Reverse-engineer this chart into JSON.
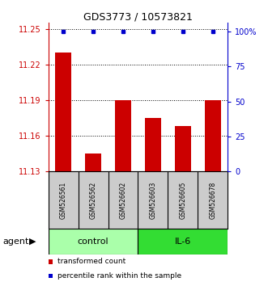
{
  "title": "GDS3773 / 10573821",
  "samples": [
    "GSM526561",
    "GSM526562",
    "GSM526602",
    "GSM526603",
    "GSM526605",
    "GSM526678"
  ],
  "bar_values": [
    11.23,
    11.145,
    11.19,
    11.175,
    11.168,
    11.19
  ],
  "percentile_values": [
    100,
    100,
    100,
    100,
    100,
    100
  ],
  "ylim_left": [
    11.13,
    11.255
  ],
  "yticks_left": [
    11.13,
    11.16,
    11.19,
    11.22,
    11.25
  ],
  "ylim_right": [
    0,
    106
  ],
  "yticks_right": [
    0,
    25,
    50,
    75,
    100
  ],
  "yticklabels_right": [
    "0",
    "25",
    "50",
    "75",
    "100%"
  ],
  "bar_color": "#cc0000",
  "dot_color": "#0000cc",
  "bar_bottom": 11.13,
  "group_starts": [
    0,
    3
  ],
  "group_ends": [
    3,
    6
  ],
  "groups": [
    {
      "label": "control",
      "color": "#aaffaa"
    },
    {
      "label": "IL-6",
      "color": "#33dd33"
    }
  ],
  "agent_label": "agent",
  "legend_items": [
    {
      "label": "transformed count",
      "color": "#cc0000"
    },
    {
      "label": "percentile rank within the sample",
      "color": "#0000cc"
    }
  ],
  "background_color": "#ffffff",
  "sample_box_color": "#cccccc",
  "title_fontsize": 9,
  "tick_fontsize": 7,
  "sample_fontsize": 5.5,
  "group_fontsize": 8,
  "legend_fontsize": 6.5
}
